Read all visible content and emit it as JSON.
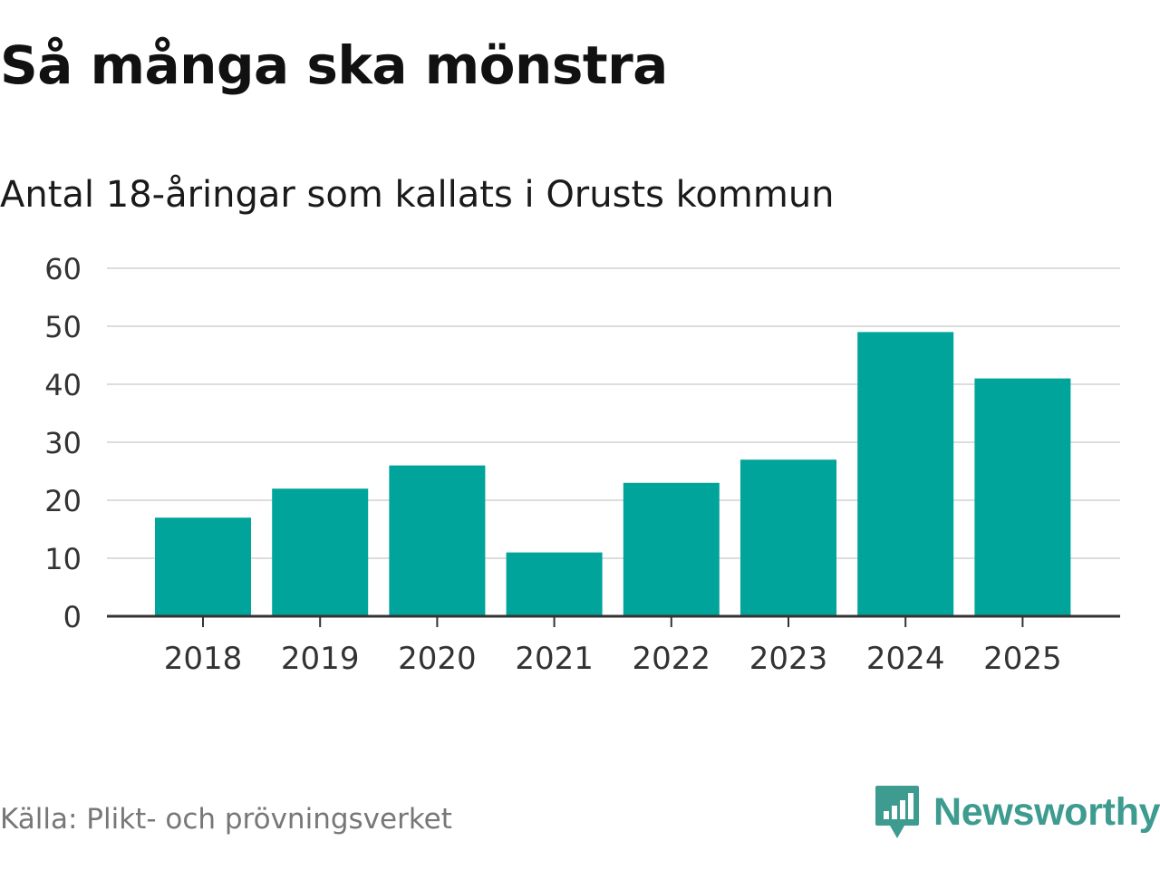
{
  "chart_data": {
    "type": "bar",
    "title": "Så många ska mönstra",
    "subtitle": "Antal 18-åringar som kallats i Orusts kommun",
    "categories": [
      "2018",
      "2019",
      "2020",
      "2021",
      "2022",
      "2023",
      "2024",
      "2025"
    ],
    "values": [
      17,
      22,
      26,
      11,
      23,
      27,
      49,
      41
    ],
    "yticks": [
      0,
      10,
      20,
      30,
      40,
      50,
      60
    ],
    "ylim": [
      0,
      60
    ],
    "xlabel": "",
    "ylabel": "",
    "grid": true,
    "bar_color": "#00a49a"
  },
  "footer": {
    "source": "Källa: Plikt- och prövningsverket",
    "brand": "Newsworthy",
    "brand_color": "#3d9b8f",
    "brand_icon": "newsworthy-logo-icon"
  }
}
